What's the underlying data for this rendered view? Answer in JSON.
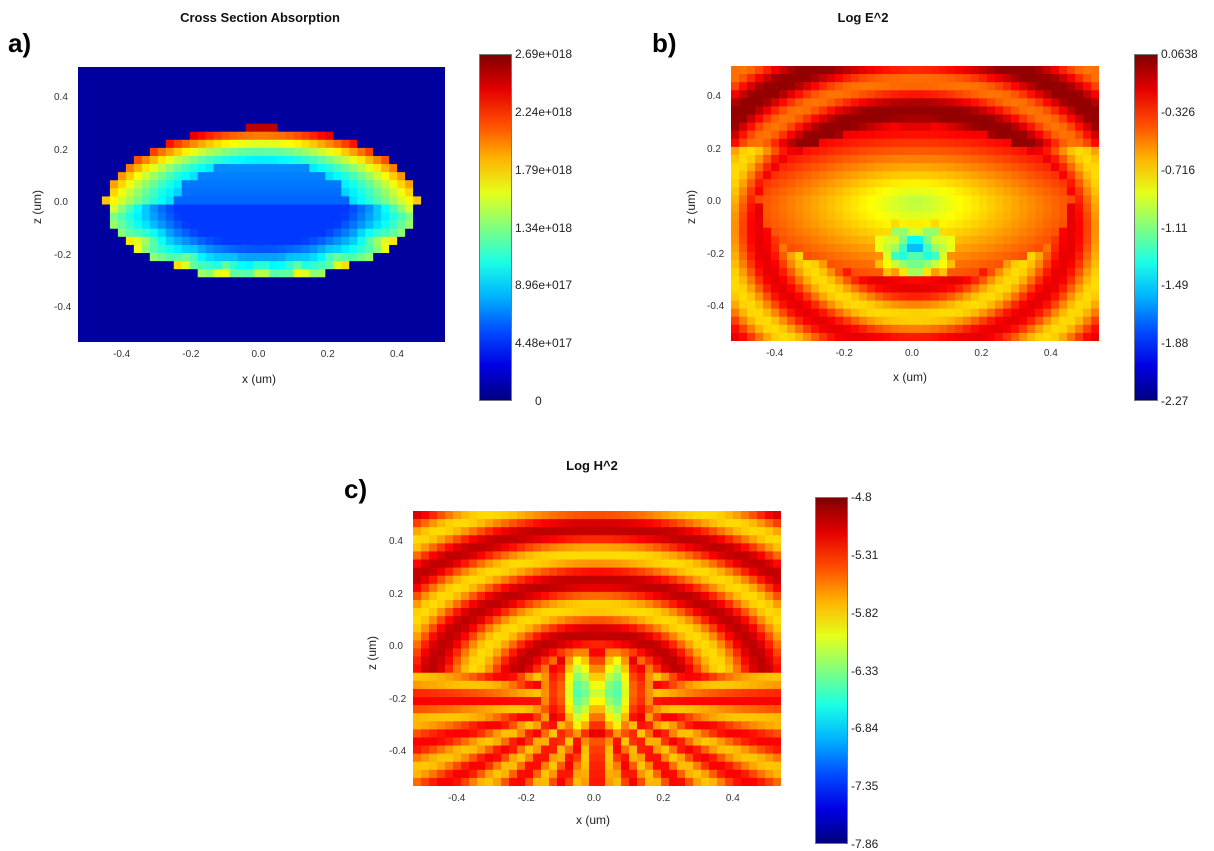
{
  "chart_data": [
    {
      "type": "heatmap",
      "panel_label": "a)",
      "title": "Cross Section Absorption",
      "xlabel": "x (um)",
      "ylabel": "z (um)",
      "xlim": [
        -0.53,
        0.53
      ],
      "ylim": [
        -0.53,
        0.52
      ],
      "xticks": [
        "-0.4",
        "-0.2",
        "0.0",
        "0.2",
        "0.4"
      ],
      "yticks": [
        "0.4",
        "0.2",
        "0.0",
        "-0.2",
        "-0.4"
      ],
      "colorbar_ticks": [
        "2.69e+018",
        "2.24e+018",
        "1.79e+018",
        "1.34e+018",
        "8.96e+017",
        "4.48e+017",
        "0"
      ],
      "colormap": "jet",
      "clim": [
        0,
        2.69e+18
      ],
      "legend_position": "right"
    },
    {
      "type": "heatmap",
      "panel_label": "b)",
      "title": "Log E^2",
      "xlabel": "x (um)",
      "ylabel": "z (um)",
      "xlim": [
        -0.53,
        0.53
      ],
      "ylim": [
        -0.53,
        0.52
      ],
      "xticks": [
        "-0.4",
        "-0.2",
        "0.0",
        "0.2",
        "0.4"
      ],
      "yticks": [
        "0.4",
        "0.2",
        "0.0",
        "-0.2",
        "-0.4"
      ],
      "colorbar_ticks": [
        "0.0638",
        "-0.326",
        "-0.716",
        "-1.11",
        "-1.49",
        "-1.88",
        "-2.27"
      ],
      "colormap": "jet",
      "clim": [
        -2.27,
        0.0638
      ],
      "legend_position": "right"
    },
    {
      "type": "heatmap",
      "panel_label": "c)",
      "title": "Log H^2",
      "xlabel": "x (um)",
      "ylabel": "z (um)",
      "xlim": [
        -0.53,
        0.53
      ],
      "ylim": [
        -0.53,
        0.52
      ],
      "xticks": [
        "-0.4",
        "-0.2",
        "0.0",
        "0.2",
        "0.4"
      ],
      "yticks": [
        "0.4",
        "0.2",
        "0.0",
        "-0.2",
        "-0.4"
      ],
      "colorbar_ticks": [
        "-4.8",
        "-5.31",
        "-5.82",
        "-6.33",
        "-6.84",
        "-7.35",
        "-7.86"
      ],
      "colormap": "jet",
      "clim": [
        -7.86,
        -4.8
      ],
      "legend_position": "right"
    }
  ]
}
